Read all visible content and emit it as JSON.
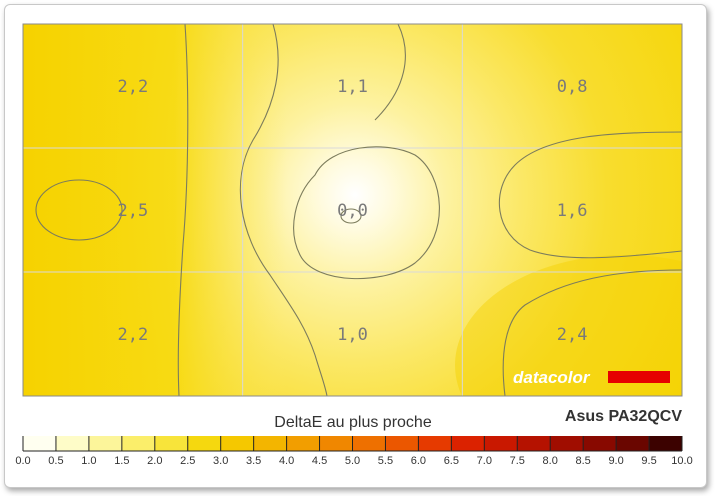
{
  "chart_data": {
    "type": "heatmap",
    "title": "",
    "rows": 3,
    "cols": 3,
    "values": [
      [
        "2,2",
        "1,1",
        "0,8"
      ],
      [
        "2,5",
        "0,0",
        "1,6"
      ],
      [
        "2,2",
        "1,0",
        "2,4"
      ]
    ],
    "scale_label": "DeltaE au plus proche",
    "scale_ticks": [
      "0.0",
      "0.5",
      "1.0",
      "1.5",
      "2.0",
      "2.5",
      "3.0",
      "3.5",
      "4.0",
      "4.5",
      "5.0",
      "5.5",
      "6.0",
      "6.5",
      "7.0",
      "7.5",
      "8.0",
      "8.5",
      "9.0",
      "9.5",
      "10.0"
    ],
    "scale_colors": [
      "#fffff0",
      "#fefcc8",
      "#fcf59a",
      "#fbee6a",
      "#f8e43a",
      "#f5d80f",
      "#f5c800",
      "#f3b500",
      "#f29e00",
      "#f08700",
      "#ee7000",
      "#eb5700",
      "#e63a00",
      "#db2200",
      "#c91800",
      "#b51200",
      "#a00d00",
      "#880900",
      "#6a0600",
      "#3c0200"
    ],
    "grid": true,
    "monitor": "Asus PA32QCV",
    "brand": "datacolor",
    "brand_bar_color": "#e60000"
  }
}
